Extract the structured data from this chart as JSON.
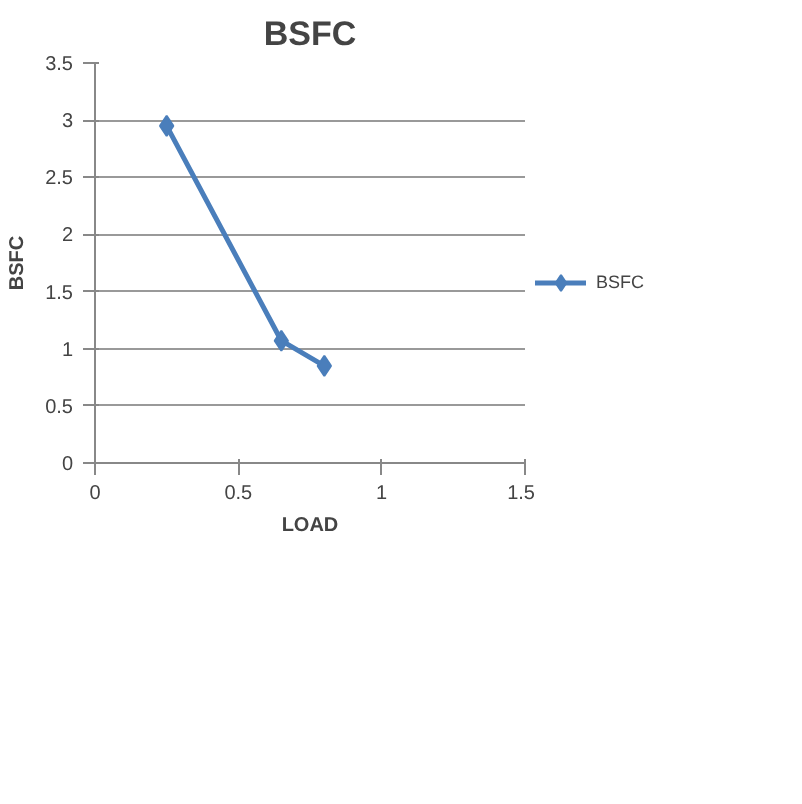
{
  "chart_data": {
    "type": "line",
    "title": "BSFC",
    "xlabel": "LOAD",
    "ylabel": "BSFC",
    "x": [
      0.25,
      0.65,
      0.8
    ],
    "series": [
      {
        "name": "BSFC",
        "color": "#4a7ebb",
        "values": [
          2.95,
          1.07,
          0.85
        ]
      }
    ],
    "xlim": [
      0,
      1.5
    ],
    "xticks": [
      0,
      0.5,
      1,
      1.5
    ],
    "ylim": [
      0,
      3.5
    ],
    "yticks": [
      0,
      0.5,
      1,
      1.5,
      2,
      2.5,
      3,
      3.5
    ],
    "grid": "y",
    "legend": "right",
    "marker": "diamond"
  }
}
